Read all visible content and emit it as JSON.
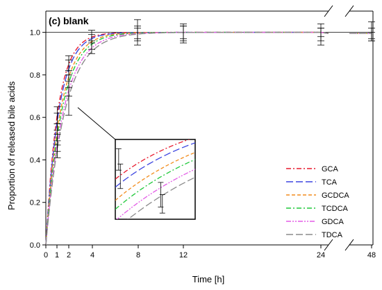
{
  "chart_data": {
    "type": "line",
    "title": "(c) blank",
    "xlabel": "Time [h]",
    "ylabel": "Proportion of released bile acids",
    "x_ticks": [
      "0",
      "1",
      "2",
      "4",
      "8",
      "12",
      "24",
      "48"
    ],
    "x_tick_values": [
      0,
      1,
      2,
      4,
      8,
      12,
      24,
      48
    ],
    "y_ticks": [
      "0.0",
      "0.2",
      "0.4",
      "0.6",
      "0.8",
      "1.0"
    ],
    "ylim": [
      0,
      1.1
    ],
    "x_axis_break": "between 24 and 48",
    "reference_line_y": 1.0,
    "legend_position": "lower-right",
    "grid": false,
    "inset": "zoomed view of curves around t = 2 h",
    "series": [
      {
        "name": "GCA",
        "color": "#e8192c",
        "dash": "dash-dot",
        "rate_per_h": 0.95,
        "x": [
          1,
          2,
          4,
          8,
          12,
          24,
          48
        ],
        "y": [
          0.61,
          0.85,
          0.98,
          1.0,
          1.0,
          1.0,
          1.0
        ]
      },
      {
        "name": "TCA",
        "color": "#3b44e0",
        "dash": "long-dash",
        "rate_per_h": 0.88,
        "x": [
          1,
          2,
          4,
          8,
          12,
          24,
          48
        ],
        "y": [
          0.58,
          0.83,
          0.97,
          1.0,
          1.0,
          1.0,
          1.0
        ]
      },
      {
        "name": "GCDCA",
        "color": "#f28c1c",
        "dash": "dash",
        "rate_per_h": 0.78,
        "x": [
          1,
          2,
          4,
          8,
          12,
          24,
          48
        ],
        "y": [
          0.52,
          0.78,
          0.95,
          1.0,
          1.0,
          1.0,
          1.0
        ]
      },
      {
        "name": "TCDCA",
        "color": "#1fc93a",
        "dash": "dash-dot",
        "rate_per_h": 0.72,
        "x": [
          1,
          2,
          4,
          8,
          12,
          24,
          48
        ],
        "y": [
          0.5,
          0.75,
          0.94,
          0.99,
          1.0,
          0.99,
          0.99
        ]
      },
      {
        "name": "GDCA",
        "color": "#e35ce6",
        "dash": "dash-dot-dot",
        "rate_per_h": 0.65,
        "x": [
          1,
          2,
          4,
          8,
          12,
          24,
          48
        ],
        "y": [
          0.47,
          0.73,
          0.93,
          0.99,
          0.99,
          0.99,
          0.99
        ]
      },
      {
        "name": "TDCA",
        "color": "#8a8a8a",
        "dash": "long-dash",
        "rate_per_h": 0.6,
        "x": [
          1,
          2,
          4,
          8,
          12,
          24,
          48
        ],
        "y": [
          0.45,
          0.69,
          0.92,
          0.99,
          0.99,
          0.99,
          0.99
        ]
      }
    ],
    "error_bars": [
      {
        "x": 1,
        "y": 0.61,
        "low": 0.57,
        "high": 0.65
      },
      {
        "x": 1,
        "y": 0.58,
        "low": 0.54,
        "high": 0.62
      },
      {
        "x": 1,
        "y": 0.52,
        "low": 0.47,
        "high": 0.57
      },
      {
        "x": 1,
        "y": 0.48,
        "low": 0.44,
        "high": 0.52
      },
      {
        "x": 1,
        "y": 0.45,
        "low": 0.41,
        "high": 0.49
      },
      {
        "x": 2,
        "y": 0.85,
        "low": 0.82,
        "high": 0.89
      },
      {
        "x": 2,
        "y": 0.83,
        "low": 0.8,
        "high": 0.87
      },
      {
        "x": 2,
        "y": 0.78,
        "low": 0.74,
        "high": 0.82
      },
      {
        "x": 2,
        "y": 0.75,
        "low": 0.7,
        "high": 0.8
      },
      {
        "x": 2,
        "y": 0.69,
        "low": 0.61,
        "high": 0.77
      },
      {
        "x": 4,
        "y": 0.98,
        "low": 0.95,
        "high": 1.01
      },
      {
        "x": 4,
        "y": 0.96,
        "low": 0.92,
        "high": 0.99
      },
      {
        "x": 4,
        "y": 0.93,
        "low": 0.9,
        "high": 0.96
      },
      {
        "x": 8,
        "y": 1.0,
        "low": 0.97,
        "high": 1.03
      },
      {
        "x": 8,
        "y": 1.0,
        "low": 0.94,
        "high": 1.06
      },
      {
        "x": 8,
        "y": 0.99,
        "low": 0.96,
        "high": 1.02
      },
      {
        "x": 12,
        "y": 1.0,
        "low": 0.96,
        "high": 1.04
      },
      {
        "x": 12,
        "y": 0.99,
        "low": 0.95,
        "high": 1.03
      },
      {
        "x": 12,
        "y": 1.0,
        "low": 0.97,
        "high": 1.03
      },
      {
        "x": 24,
        "y": 1.0,
        "low": 0.96,
        "high": 1.04
      },
      {
        "x": 24,
        "y": 0.99,
        "low": 0.94,
        "high": 1.02
      },
      {
        "x": 24,
        "y": 1.0,
        "low": 0.98,
        "high": 1.02
      },
      {
        "x": 48,
        "y": 1.0,
        "low": 0.97,
        "high": 1.05
      },
      {
        "x": 48,
        "y": 0.99,
        "low": 0.96,
        "high": 1.02
      },
      {
        "x": 48,
        "y": 0.98,
        "low": 0.96,
        "high": 1.0
      }
    ]
  }
}
